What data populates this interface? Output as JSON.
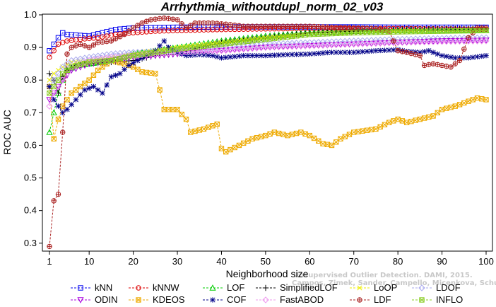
{
  "chart_data": {
    "type": "line",
    "title": "Arrhythmia_withoutdupl_norm_02_v03",
    "xlabel": "Neighborhood size",
    "ylabel": "ROC AUC",
    "xlim": [
      1,
      100
    ],
    "ylim": [
      0.28,
      1.0
    ],
    "xticks": [
      1,
      10,
      20,
      30,
      40,
      50,
      60,
      70,
      80,
      90,
      100
    ],
    "yticks": [
      0.3,
      0.4,
      0.5,
      0.6,
      0.7,
      0.8,
      0.9,
      1.0
    ],
    "grid": false,
    "legend_position": "bottom",
    "watermark": [
      "Unsupervised Outlier Detection. DAMI, 2015.",
      "Campos, Zimek, Sander, Campello, Micenkova, Schubert, Assent, Houle"
    ],
    "series": [
      {
        "name": "kNN",
        "color": "#0000ee",
        "marker": "square",
        "dash": "dash",
        "points": [
          [
            1,
            0.89
          ],
          [
            2,
            0.91
          ],
          [
            3,
            0.93
          ],
          [
            4,
            0.945
          ],
          [
            5,
            0.94
          ],
          [
            7,
            0.938
          ],
          [
            10,
            0.935
          ],
          [
            13,
            0.945
          ],
          [
            16,
            0.955
          ],
          [
            20,
            0.96
          ],
          [
            30,
            0.962
          ],
          [
            40,
            0.963
          ],
          [
            50,
            0.963
          ],
          [
            60,
            0.963
          ],
          [
            70,
            0.963
          ],
          [
            80,
            0.962
          ],
          [
            90,
            0.962
          ],
          [
            100,
            0.962
          ]
        ]
      },
      {
        "name": "kNNW",
        "color": "#dd0000",
        "marker": "circle",
        "dash": "dash",
        "points": [
          [
            1,
            0.87
          ],
          [
            2,
            0.89
          ],
          [
            3,
            0.91
          ],
          [
            5,
            0.92
          ],
          [
            8,
            0.925
          ],
          [
            12,
            0.93
          ],
          [
            16,
            0.94
          ],
          [
            20,
            0.945
          ],
          [
            25,
            0.95
          ],
          [
            30,
            0.952
          ],
          [
            40,
            0.955
          ],
          [
            50,
            0.957
          ],
          [
            60,
            0.958
          ],
          [
            70,
            0.958
          ],
          [
            80,
            0.958
          ],
          [
            90,
            0.957
          ],
          [
            100,
            0.956
          ]
        ]
      },
      {
        "name": "LOF",
        "color": "#00cc00",
        "marker": "triangle",
        "dash": "dash",
        "points": [
          [
            1,
            0.64
          ],
          [
            2,
            0.7
          ],
          [
            3,
            0.76
          ],
          [
            4,
            0.8
          ],
          [
            5,
            0.83
          ],
          [
            7,
            0.845
          ],
          [
            10,
            0.85
          ],
          [
            15,
            0.86
          ],
          [
            20,
            0.88
          ],
          [
            25,
            0.89
          ],
          [
            30,
            0.9
          ],
          [
            35,
            0.91
          ],
          [
            40,
            0.92
          ],
          [
            50,
            0.935
          ],
          [
            60,
            0.945
          ],
          [
            70,
            0.95
          ],
          [
            80,
            0.952
          ],
          [
            90,
            0.953
          ],
          [
            100,
            0.953
          ]
        ]
      },
      {
        "name": "SimplifiedLOF",
        "color": "#000000",
        "marker": "plus",
        "dash": "dash",
        "points": [
          [
            1,
            0.82
          ],
          [
            2,
            0.8
          ],
          [
            3,
            0.76
          ],
          [
            4,
            0.81
          ],
          [
            5,
            0.83
          ],
          [
            7,
            0.845
          ],
          [
            10,
            0.85
          ],
          [
            15,
            0.855
          ],
          [
            20,
            0.86
          ],
          [
            25,
            0.875
          ],
          [
            30,
            0.88
          ],
          [
            35,
            0.9
          ],
          [
            40,
            0.915
          ],
          [
            50,
            0.93
          ],
          [
            60,
            0.945
          ],
          [
            70,
            0.95
          ],
          [
            80,
            0.955
          ],
          [
            90,
            0.957
          ],
          [
            100,
            0.958
          ]
        ]
      },
      {
        "name": "LoOP",
        "color": "#eeee00",
        "marker": "x",
        "dash": "dash",
        "points": [
          [
            1,
            0.8
          ],
          [
            2,
            0.82
          ],
          [
            4,
            0.84
          ],
          [
            6,
            0.855
          ],
          [
            10,
            0.86
          ],
          [
            15,
            0.87
          ],
          [
            20,
            0.88
          ],
          [
            30,
            0.9
          ],
          [
            40,
            0.915
          ],
          [
            50,
            0.93
          ],
          [
            60,
            0.94
          ],
          [
            70,
            0.945
          ],
          [
            80,
            0.95
          ],
          [
            90,
            0.95
          ],
          [
            100,
            0.952
          ]
        ]
      },
      {
        "name": "LDOF",
        "color": "#aaaaee",
        "marker": "diamond",
        "dash": "dash",
        "points": [
          [
            1,
            0.78
          ],
          [
            2,
            0.8
          ],
          [
            4,
            0.84
          ],
          [
            6,
            0.86
          ],
          [
            10,
            0.87
          ],
          [
            15,
            0.88
          ],
          [
            20,
            0.885
          ],
          [
            30,
            0.89
          ],
          [
            40,
            0.9
          ],
          [
            50,
            0.91
          ],
          [
            60,
            0.915
          ],
          [
            70,
            0.92
          ],
          [
            80,
            0.925
          ],
          [
            90,
            0.928
          ],
          [
            100,
            0.93
          ]
        ]
      },
      {
        "name": "ODIN",
        "color": "#aa00dd",
        "marker": "triangle-down",
        "dash": "dash",
        "points": [
          [
            1,
            0.74
          ],
          [
            2,
            0.76
          ],
          [
            4,
            0.8
          ],
          [
            6,
            0.83
          ],
          [
            10,
            0.85
          ],
          [
            15,
            0.86
          ],
          [
            20,
            0.87
          ],
          [
            25,
            0.875
          ],
          [
            30,
            0.88
          ],
          [
            40,
            0.89
          ],
          [
            50,
            0.9
          ],
          [
            60,
            0.905
          ],
          [
            70,
            0.91
          ],
          [
            80,
            0.915
          ],
          [
            90,
            0.92
          ],
          [
            100,
            0.922
          ]
        ]
      },
      {
        "name": "KDEOS",
        "color": "#eeaa00",
        "marker": "square-x",
        "dash": "dash",
        "points": [
          [
            1,
            0.78
          ],
          [
            2,
            0.62
          ],
          [
            3,
            0.68
          ],
          [
            4,
            0.72
          ],
          [
            5,
            0.74
          ],
          [
            6,
            0.76
          ],
          [
            8,
            0.78
          ],
          [
            10,
            0.8
          ],
          [
            12,
            0.83
          ],
          [
            15,
            0.86
          ],
          [
            18,
            0.85
          ],
          [
            20,
            0.84
          ],
          [
            22,
            0.825
          ],
          [
            25,
            0.82
          ],
          [
            26,
            0.77
          ],
          [
            27,
            0.71
          ],
          [
            30,
            0.71
          ],
          [
            32,
            0.68
          ],
          [
            33,
            0.64
          ],
          [
            36,
            0.65
          ],
          [
            39,
            0.665
          ],
          [
            40,
            0.59
          ],
          [
            41,
            0.58
          ],
          [
            44,
            0.6
          ],
          [
            47,
            0.62
          ],
          [
            50,
            0.63
          ],
          [
            52,
            0.64
          ],
          [
            55,
            0.63
          ],
          [
            58,
            0.64
          ],
          [
            60,
            0.63
          ],
          [
            63,
            0.605
          ],
          [
            65,
            0.6
          ],
          [
            67,
            0.62
          ],
          [
            70,
            0.64
          ],
          [
            75,
            0.65
          ],
          [
            78,
            0.67
          ],
          [
            80,
            0.68
          ],
          [
            82,
            0.67
          ],
          [
            85,
            0.68
          ],
          [
            88,
            0.69
          ],
          [
            90,
            0.71
          ],
          [
            93,
            0.72
          ],
          [
            96,
            0.735
          ],
          [
            98,
            0.745
          ],
          [
            100,
            0.74
          ]
        ]
      },
      {
        "name": "COF",
        "color": "#000088",
        "marker": "asterisk",
        "dash": "dash",
        "points": [
          [
            1,
            0.78
          ],
          [
            2,
            0.74
          ],
          [
            3,
            0.72
          ],
          [
            4,
            0.7
          ],
          [
            5,
            0.71
          ],
          [
            7,
            0.74
          ],
          [
            9,
            0.77
          ],
          [
            11,
            0.78
          ],
          [
            13,
            0.76
          ],
          [
            15,
            0.81
          ],
          [
            17,
            0.82
          ],
          [
            19,
            0.845
          ],
          [
            21,
            0.86
          ],
          [
            23,
            0.875
          ],
          [
            25,
            0.89
          ],
          [
            27,
            0.92
          ],
          [
            28,
            0.9
          ],
          [
            30,
            0.885
          ],
          [
            32,
            0.875
          ],
          [
            35,
            0.878
          ],
          [
            38,
            0.875
          ],
          [
            40,
            0.868
          ],
          [
            45,
            0.875
          ],
          [
            50,
            0.875
          ],
          [
            55,
            0.878
          ],
          [
            60,
            0.88
          ],
          [
            65,
            0.885
          ],
          [
            70,
            0.885
          ],
          [
            75,
            0.89
          ],
          [
            80,
            0.893
          ],
          [
            82,
            0.888
          ],
          [
            85,
            0.885
          ],
          [
            87,
            0.89
          ],
          [
            90,
            0.875
          ],
          [
            93,
            0.868
          ],
          [
            96,
            0.868
          ],
          [
            100,
            0.875
          ]
        ]
      },
      {
        "name": "FastABOD",
        "color": "#ee99ee",
        "marker": "diamond",
        "dash": "dash",
        "points": [
          [
            1,
            0.72
          ],
          [
            2,
            0.76
          ],
          [
            4,
            0.8
          ],
          [
            6,
            0.84
          ],
          [
            10,
            0.86
          ],
          [
            15,
            0.87
          ],
          [
            20,
            0.875
          ],
          [
            25,
            0.88
          ],
          [
            30,
            0.885
          ],
          [
            40,
            0.89
          ],
          [
            50,
            0.9
          ],
          [
            60,
            0.905
          ],
          [
            70,
            0.91
          ],
          [
            80,
            0.915
          ],
          [
            90,
            0.918
          ],
          [
            100,
            0.92
          ]
        ]
      },
      {
        "name": "LDF",
        "color": "#aa2222",
        "marker": "circle-plus",
        "dash": "dash",
        "points": [
          [
            1,
            0.29
          ],
          [
            2,
            0.43
          ],
          [
            3,
            0.45
          ],
          [
            4,
            0.64
          ],
          [
            5,
            0.88
          ],
          [
            6,
            0.9
          ],
          [
            8,
            0.91
          ],
          [
            10,
            0.9
          ],
          [
            12,
            0.915
          ],
          [
            15,
            0.92
          ],
          [
            18,
            0.94
          ],
          [
            20,
            0.96
          ],
          [
            22,
            0.975
          ],
          [
            24,
            0.985
          ],
          [
            27,
            0.99
          ],
          [
            30,
            0.985
          ],
          [
            32,
            0.96
          ],
          [
            34,
            0.975
          ],
          [
            38,
            0.975
          ],
          [
            42,
            0.97
          ],
          [
            45,
            0.965
          ],
          [
            50,
            0.965
          ],
          [
            55,
            0.965
          ],
          [
            60,
            0.965
          ],
          [
            65,
            0.962
          ],
          [
            70,
            0.96
          ],
          [
            75,
            0.958
          ],
          [
            78,
            0.95
          ],
          [
            80,
            0.89
          ],
          [
            82,
            0.885
          ],
          [
            85,
            0.875
          ],
          [
            86,
            0.845
          ],
          [
            88,
            0.85
          ],
          [
            90,
            0.845
          ],
          [
            92,
            0.84
          ],
          [
            94,
            0.86
          ],
          [
            96,
            0.93
          ],
          [
            98,
            0.96
          ],
          [
            100,
            0.96
          ]
        ]
      },
      {
        "name": "INFLO",
        "color": "#88cc22",
        "marker": "square-x",
        "dash": "dash",
        "points": [
          [
            1,
            0.76
          ],
          [
            2,
            0.78
          ],
          [
            4,
            0.82
          ],
          [
            6,
            0.84
          ],
          [
            10,
            0.855
          ],
          [
            15,
            0.86
          ],
          [
            20,
            0.875
          ],
          [
            25,
            0.885
          ],
          [
            30,
            0.895
          ],
          [
            40,
            0.91
          ],
          [
            50,
            0.925
          ],
          [
            60,
            0.94
          ],
          [
            70,
            0.945
          ],
          [
            80,
            0.948
          ],
          [
            90,
            0.95
          ],
          [
            100,
            0.952
          ]
        ]
      }
    ]
  }
}
